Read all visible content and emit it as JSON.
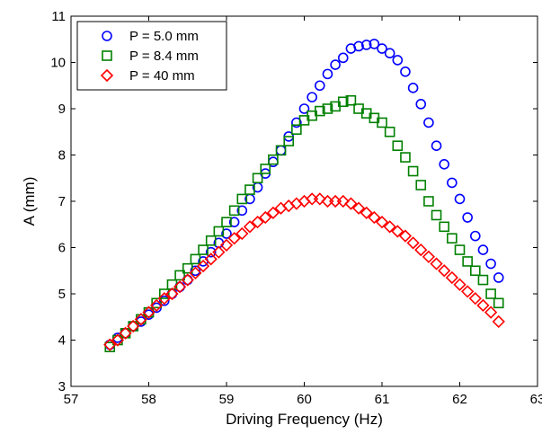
{
  "chart_data": {
    "type": "scatter",
    "title": "",
    "xlabel": "Driving Frequency (Hz)",
    "ylabel": "A (mm)",
    "xlim": [
      57,
      63
    ],
    "ylim": [
      3,
      11
    ],
    "xticks": [
      57,
      58,
      59,
      60,
      61,
      62,
      63
    ],
    "yticks": [
      3,
      4,
      5,
      6,
      7,
      8,
      9,
      10,
      11
    ],
    "grid": false,
    "legend_position": "top-left",
    "series": [
      {
        "name": "P = 5.0 mm",
        "marker": "circle",
        "color": "#0000ff",
        "x": [
          57.5,
          57.6,
          57.7,
          57.8,
          57.9,
          58.0,
          58.1,
          58.2,
          58.3,
          58.4,
          58.5,
          58.6,
          58.7,
          58.8,
          58.9,
          59.0,
          59.1,
          59.2,
          59.3,
          59.4,
          59.5,
          59.6,
          59.7,
          59.8,
          59.9,
          60.0,
          60.1,
          60.2,
          60.3,
          60.4,
          60.5,
          60.6,
          60.7,
          60.8,
          60.9,
          61.0,
          61.1,
          61.2,
          61.3,
          61.4,
          61.5,
          61.6,
          61.7,
          61.8,
          61.9,
          62.0,
          62.1,
          62.2,
          62.3,
          62.4,
          62.5
        ],
        "y": [
          3.9,
          4.05,
          4.15,
          4.3,
          4.4,
          4.55,
          4.7,
          4.85,
          5.0,
          5.15,
          5.3,
          5.5,
          5.7,
          5.9,
          6.1,
          6.3,
          6.55,
          6.8,
          7.05,
          7.3,
          7.6,
          7.85,
          8.1,
          8.4,
          8.7,
          9.0,
          9.25,
          9.5,
          9.75,
          9.95,
          10.1,
          10.3,
          10.35,
          10.38,
          10.4,
          10.3,
          10.2,
          10.05,
          9.8,
          9.45,
          9.1,
          8.7,
          8.2,
          7.8,
          7.4,
          7.05,
          6.65,
          6.25,
          5.95,
          5.65,
          5.35
        ]
      },
      {
        "name": "P = 8.4 mm",
        "marker": "square",
        "color": "#008000",
        "x": [
          57.5,
          57.6,
          57.7,
          57.8,
          57.9,
          58.0,
          58.1,
          58.2,
          58.3,
          58.4,
          58.5,
          58.6,
          58.7,
          58.8,
          58.9,
          59.0,
          59.1,
          59.2,
          59.3,
          59.4,
          59.5,
          59.6,
          59.7,
          59.8,
          59.9,
          60.0,
          60.1,
          60.2,
          60.3,
          60.4,
          60.5,
          60.6,
          60.7,
          60.8,
          60.9,
          61.0,
          61.1,
          61.2,
          61.3,
          61.4,
          61.5,
          61.6,
          61.7,
          61.8,
          61.9,
          62.0,
          62.1,
          62.2,
          62.3,
          62.4,
          62.5
        ],
        "y": [
          3.85,
          4.0,
          4.15,
          4.3,
          4.45,
          4.6,
          4.8,
          5.0,
          5.2,
          5.4,
          5.55,
          5.75,
          5.95,
          6.15,
          6.35,
          6.55,
          6.8,
          7.05,
          7.25,
          7.5,
          7.7,
          7.9,
          8.1,
          8.3,
          8.55,
          8.75,
          8.85,
          8.95,
          9.0,
          9.05,
          9.15,
          9.18,
          9.0,
          8.9,
          8.8,
          8.7,
          8.5,
          8.2,
          7.95,
          7.65,
          7.35,
          7.0,
          6.7,
          6.45,
          6.2,
          5.95,
          5.7,
          5.5,
          5.3,
          5.0,
          4.8
        ]
      },
      {
        "name": "P = 40 mm",
        "marker": "diamond",
        "color": "#ff0000",
        "x": [
          57.5,
          57.6,
          57.7,
          57.8,
          57.9,
          58.0,
          58.1,
          58.2,
          58.3,
          58.4,
          58.5,
          58.6,
          58.7,
          58.8,
          58.9,
          59.0,
          59.1,
          59.2,
          59.3,
          59.4,
          59.5,
          59.6,
          59.7,
          59.8,
          59.9,
          60.0,
          60.1,
          60.2,
          60.3,
          60.4,
          60.5,
          60.6,
          60.7,
          60.8,
          60.9,
          61.0,
          61.1,
          61.2,
          61.3,
          61.4,
          61.5,
          61.6,
          61.7,
          61.8,
          61.9,
          62.0,
          62.1,
          62.2,
          62.3,
          62.4,
          62.5
        ],
        "y": [
          3.9,
          4.0,
          4.15,
          4.3,
          4.45,
          4.6,
          4.75,
          4.9,
          5.0,
          5.15,
          5.3,
          5.45,
          5.6,
          5.75,
          5.9,
          6.05,
          6.2,
          6.3,
          6.45,
          6.55,
          6.65,
          6.75,
          6.85,
          6.9,
          6.95,
          7.0,
          7.05,
          7.05,
          7.0,
          7.0,
          7.0,
          6.95,
          6.85,
          6.75,
          6.65,
          6.55,
          6.45,
          6.35,
          6.25,
          6.1,
          5.95,
          5.8,
          5.65,
          5.5,
          5.35,
          5.2,
          5.05,
          4.9,
          4.75,
          4.6,
          4.4
        ]
      }
    ]
  }
}
